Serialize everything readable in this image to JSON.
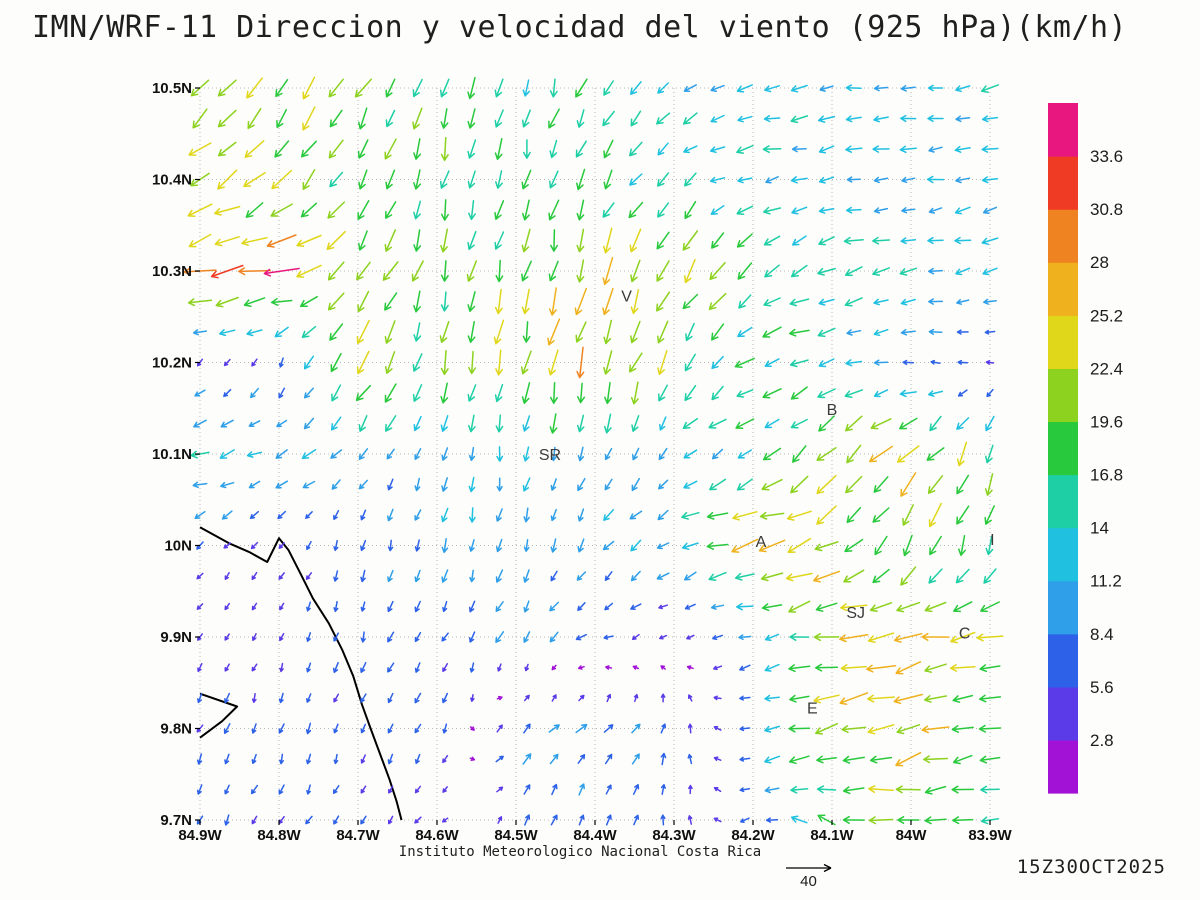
{
  "title": "IMN/WRF-11 Direccion y velocidad del viento (925 hPa)(km/h)",
  "footer": {
    "institute": "Instituto Meteorologico Nacional Costa Rica",
    "timestamp": "15Z30OCT2025",
    "reference_vector": {
      "label": "40",
      "value": 40
    }
  },
  "chart_data": {
    "type": "vector-field",
    "title": "IMN/WRF-11 Direccion y velocidad del viento (925 hPa)(km/h)",
    "variable": "wind direction and speed",
    "level": "925 hPa",
    "units": "km/h",
    "x_ticks": [
      "84.9W",
      "84.8W",
      "84.7W",
      "84.6W",
      "84.5W",
      "84.4W",
      "84.3W",
      "84.2W",
      "84.1W",
      "84W",
      "83.9W"
    ],
    "y_ticks": [
      "10.5N",
      "10.4N",
      "10.3N",
      "10.2N",
      "10.1N",
      "10N",
      "9.9N",
      "9.8N",
      "9.7N"
    ],
    "colorbar": {
      "labels_top_to_bottom": [
        "33.6",
        "30.8",
        "28",
        "25.2",
        "22.4",
        "19.6",
        "16.8",
        "14",
        "11.2",
        "8.4",
        "5.6",
        "2.8"
      ],
      "levels": [
        2.8,
        5.6,
        8.4,
        11.2,
        14,
        16.8,
        19.6,
        22.4,
        25.2,
        28,
        30.8,
        33.6
      ],
      "colors_bottom_to_top": [
        "#a212d6",
        "#5b3be8",
        "#2d62e8",
        "#2e9fe8",
        "#1fc0e0",
        "#1ecfa6",
        "#28c93c",
        "#8cd21e",
        "#e0d61a",
        "#efb11d",
        "#ef8322",
        "#ef3b24",
        "#e8177f"
      ]
    },
    "stations": [
      {
        "label": "V",
        "lon": 84.36,
        "lat": 10.272
      },
      {
        "label": "B",
        "lon": 84.1,
        "lat": 10.148
      },
      {
        "label": "SR",
        "lon": 84.457,
        "lat": 10.099
      },
      {
        "label": "A",
        "lon": 84.19,
        "lat": 10.004
      },
      {
        "label": "SJ",
        "lon": 84.07,
        "lat": 9.926
      },
      {
        "label": "C",
        "lon": 83.932,
        "lat": 9.904
      },
      {
        "label": "E",
        "lon": 84.125,
        "lat": 9.822
      },
      {
        "label": "I",
        "lon": 83.897,
        "lat": 10.006
      }
    ],
    "coastline": [
      [
        [
          84.9,
          10.02
        ],
        [
          84.862,
          10.002
        ],
        [
          84.838,
          9.993
        ],
        [
          84.815,
          9.982
        ],
        [
          84.8,
          10.008
        ],
        [
          84.788,
          9.995
        ],
        [
          84.772,
          9.968
        ],
        [
          84.757,
          9.942
        ],
        [
          84.737,
          9.915
        ],
        [
          84.72,
          9.886
        ],
        [
          84.706,
          9.857
        ],
        [
          84.695,
          9.826
        ],
        [
          84.684,
          9.8
        ],
        [
          84.672,
          9.772
        ],
        [
          84.66,
          9.744
        ],
        [
          84.651,
          9.72
        ],
        [
          84.645,
          9.7
        ]
      ],
      [
        [
          84.9,
          9.838
        ],
        [
          84.853,
          9.824
        ],
        [
          84.872,
          9.808
        ],
        [
          84.9,
          9.79
        ]
      ]
    ],
    "wind_grid": {
      "comment": "u = eastward, v = northward components in km/h, estimated on the 0.1-degree gridline intersections; lons are degrees West, lats degrees North",
      "lons": [
        84.9,
        84.8,
        84.7,
        84.6,
        84.5,
        84.4,
        84.3,
        84.2,
        84.1,
        84.0,
        83.9
      ],
      "lats": [
        10.5,
        10.4,
        10.3,
        10.2,
        10.1,
        10.0,
        9.9,
        9.8,
        9.7
      ],
      "u": [
        [
          -14,
          -13,
          -10,
          -4,
          -3,
          -7,
          -11,
          -13,
          -12,
          -12,
          -13
        ],
        [
          -20,
          -14,
          -9,
          -4,
          -3,
          -8,
          -9,
          -13,
          -11,
          -11,
          -12
        ],
        [
          -26,
          -30,
          -13,
          -5,
          -4,
          -5,
          -12,
          -14,
          -16,
          -13,
          -12
        ],
        [
          -3,
          -2,
          -12,
          -4,
          -5,
          -6,
          -10,
          -15,
          -12,
          -8,
          -4
        ],
        [
          -16,
          -10,
          -7,
          -3,
          -2,
          -3,
          -7,
          -13,
          -15,
          -18,
          -5
        ],
        [
          -4,
          -3,
          -2,
          -3,
          -2,
          -6,
          -10,
          -26,
          -20,
          -8,
          -5
        ],
        [
          -2,
          -2,
          -2,
          -3,
          -5,
          -7,
          -3,
          -8,
          -25,
          -22,
          -21
        ],
        [
          -3,
          -2,
          -2,
          -3,
          6,
          7,
          2,
          -8,
          -24,
          -23,
          -17
        ],
        [
          -3,
          -3,
          -2,
          -3,
          4,
          2,
          1,
          -7,
          -15,
          -20,
          -16
        ]
      ],
      "v": [
        [
          -16,
          -17,
          -16,
          -17,
          -16,
          -15,
          -7,
          -3,
          -2,
          -2,
          -2
        ],
        [
          -12,
          -16,
          -17,
          -18,
          -17,
          -15,
          -9,
          -3,
          -2,
          -2,
          -2
        ],
        [
          -6,
          -4,
          -18,
          -19,
          -20,
          -22,
          -20,
          -10,
          -5,
          -3,
          -3
        ],
        [
          -3,
          -6,
          -20,
          -18,
          -22,
          -25,
          -16,
          -6,
          -4,
          2,
          1
        ],
        [
          -4,
          -6,
          -8,
          -10,
          -11,
          -10,
          -8,
          -8,
          -14,
          -16,
          -17
        ],
        [
          -4,
          -3,
          -7,
          -9,
          -10,
          -8,
          -5,
          -6,
          -10,
          -20,
          -17
        ],
        [
          -4,
          -4,
          -7,
          -6,
          -8,
          -3,
          -2,
          -2,
          -4,
          -4,
          -3
        ],
        [
          -6,
          -7,
          -5,
          -7,
          7,
          6,
          7,
          -2,
          -5,
          -8,
          -4
        ],
        [
          -6,
          -5,
          -5,
          -3,
          5,
          8,
          7,
          -3,
          5,
          -2,
          -3
        ]
      ]
    }
  }
}
